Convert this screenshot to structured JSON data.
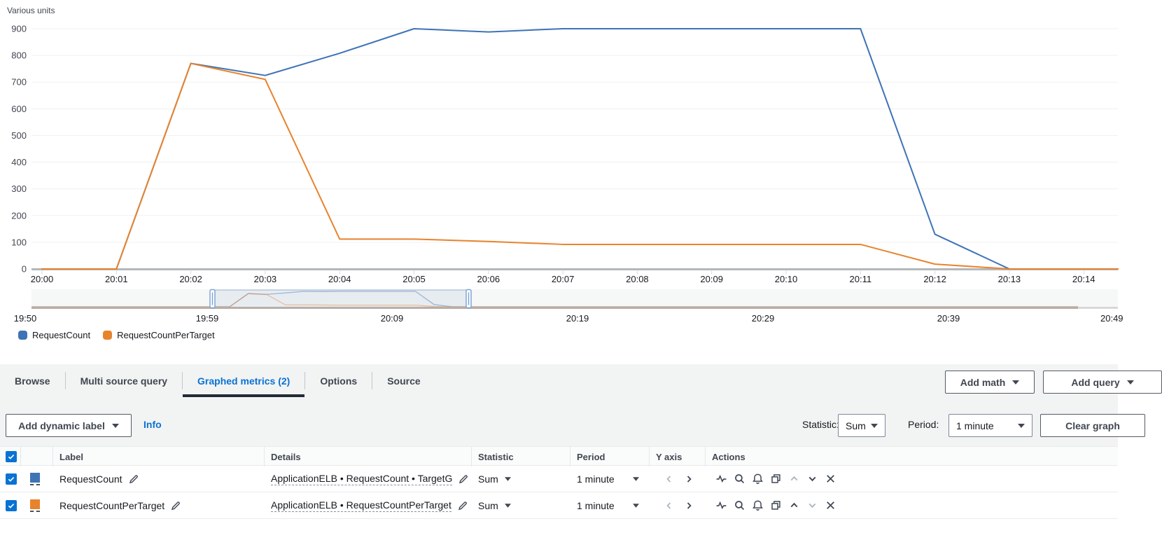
{
  "chart_data": {
    "type": "line",
    "unit_label": "Various units",
    "x": [
      "20:00",
      "20:01",
      "20:02",
      "20:03",
      "20:04",
      "20:05",
      "20:06",
      "20:07",
      "20:08",
      "20:09",
      "20:10",
      "20:11",
      "20:12",
      "20:13",
      "20:14"
    ],
    "ylim": [
      0,
      900
    ],
    "ytick_step": 100,
    "grid": true,
    "legend_position": "bottom-left",
    "series": [
      {
        "name": "RequestCount",
        "color": "#3e73b6",
        "values": [
          0,
          0,
          770,
          725,
          808,
          900,
          888,
          900,
          900,
          900,
          900,
          900,
          130,
          0,
          0
        ]
      },
      {
        "name": "RequestCountPerTarget",
        "color": "#e8832d",
        "values": [
          0,
          0,
          770,
          710,
          112,
          112,
          103,
          92,
          92,
          92,
          92,
          92,
          18,
          0,
          0
        ]
      }
    ]
  },
  "timeline": {
    "tick_labels": [
      "19:50",
      "19:59",
      "20:09",
      "20:19",
      "20:29",
      "20:39",
      "20:49"
    ]
  },
  "tabs": {
    "items": [
      {
        "label": "Browse",
        "active": false
      },
      {
        "label": "Multi source query",
        "active": false
      },
      {
        "label": "Graphed metrics (2)",
        "active": true
      },
      {
        "label": "Options",
        "active": false
      },
      {
        "label": "Source",
        "active": false
      }
    ],
    "add_math_label": "Add math",
    "add_query_label": "Add query"
  },
  "toolbar": {
    "add_dynamic_label": "Add dynamic label",
    "info_label": "Info",
    "statistic_label": "Statistic:",
    "statistic_value": "Sum",
    "period_label": "Period:",
    "period_value": "1 minute",
    "clear_graph_label": "Clear graph"
  },
  "table": {
    "columns": [
      "Label",
      "Details",
      "Statistic",
      "Period",
      "Y axis",
      "Actions"
    ],
    "rows": [
      {
        "label": "RequestCount",
        "details": "ApplicationELB • RequestCount • TargetG",
        "statistic": "Sum",
        "period": "1 minute",
        "color": "#3e73b6",
        "checked": true
      },
      {
        "label": "RequestCountPerTarget",
        "details": "ApplicationELB • RequestCountPerTarget",
        "statistic": "Sum",
        "period": "1 minute",
        "color": "#e8832d",
        "checked": true
      }
    ]
  }
}
